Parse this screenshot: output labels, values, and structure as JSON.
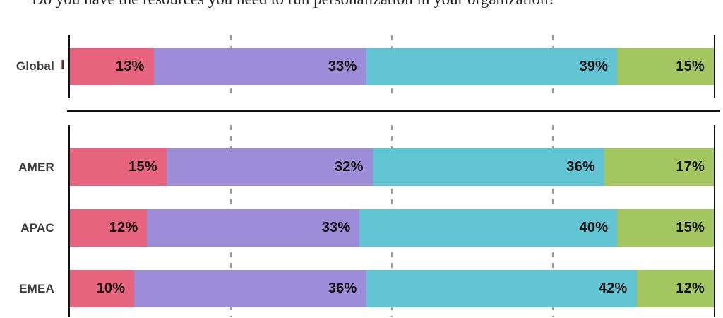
{
  "title": "Do you have the resources you need to run personalization in your organization?",
  "chart_data": {
    "type": "bar",
    "subtype": "horizontal-stacked",
    "title": "Do you have the resources you need to run personalization in your organization?",
    "value_unit": "%",
    "xlim": [
      0,
      100
    ],
    "gridlines_percent": [
      25,
      50,
      75
    ],
    "grid": "dashed-vertical",
    "legend": "none",
    "segment_colors": [
      "#e7647e",
      "#9d8dd8",
      "#61c4d3",
      "#a4c661"
    ],
    "panels": [
      {
        "id": "global-panel",
        "rows": [
          {
            "label": "Global",
            "values": [
              13,
              33,
              39,
              15
            ]
          }
        ]
      },
      {
        "id": "regions-panel",
        "rows": [
          {
            "label": "AMER",
            "values": [
              15,
              32,
              36,
              17
            ]
          },
          {
            "label": "APAC",
            "values": [
              12,
              33,
              40,
              15
            ]
          },
          {
            "label": "EMEA",
            "values": [
              10,
              36,
              42,
              12
            ]
          }
        ]
      }
    ]
  },
  "colors": {
    "background": "#ffffff",
    "title_text": "#20242e",
    "axis_line": "#111111",
    "divider_line": "#111111",
    "gridline": "#9a9a9a",
    "row_label": "#3c3c3c",
    "value_label": "#111111",
    "segment_pink": "#e7647e",
    "segment_purple": "#9d8dd8",
    "segment_teal": "#61c4d3",
    "segment_green": "#a4c661"
  }
}
